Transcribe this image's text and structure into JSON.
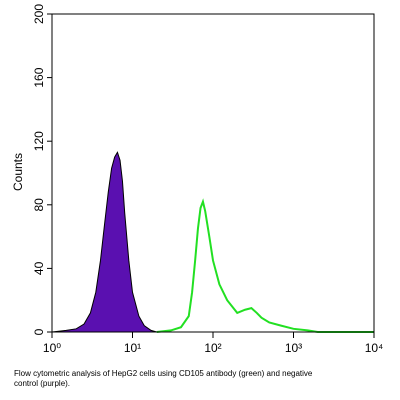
{
  "chart_data": {
    "type": "histogram-overlay",
    "ylabel": "Counts",
    "caption": "Flow cytometric analysis of HepG2 cells using CD105 antibody (green) and negative control (purple).",
    "xscale": "log",
    "xlim": [
      1,
      10000
    ],
    "xticks": [
      {
        "value": 1,
        "label": "10⁰"
      },
      {
        "value": 10,
        "label": "10¹"
      },
      {
        "value": 100,
        "label": "10²"
      },
      {
        "value": 1000,
        "label": "10³"
      },
      {
        "value": 10000,
        "label": "10⁴"
      }
    ],
    "ylim": [
      0,
      200
    ],
    "yticks": [
      0,
      40,
      80,
      120,
      160,
      200
    ],
    "series": [
      {
        "color": "#5a10b0",
        "fill": true,
        "x": [
          1,
          1.5,
          2,
          2.5,
          3,
          3.5,
          4,
          4.5,
          5,
          5.5,
          6,
          6.5,
          7,
          7.5,
          8,
          9,
          10,
          12,
          14,
          17,
          20,
          25
        ],
        "values": [
          0,
          1,
          2,
          5,
          12,
          25,
          45,
          68,
          88,
          103,
          110,
          113,
          108,
          95,
          75,
          45,
          25,
          10,
          4,
          1,
          0,
          0
        ]
      },
      {
        "color": "#22e022",
        "fill": false,
        "x": [
          20,
          30,
          40,
          50,
          55,
          60,
          65,
          70,
          75,
          80,
          90,
          100,
          120,
          150,
          200,
          250,
          300,
          350,
          400,
          500,
          700,
          1000,
          1500,
          2000,
          3000,
          5000,
          10000
        ],
        "values": [
          0,
          1,
          3,
          10,
          25,
          45,
          65,
          78,
          82,
          76,
          60,
          45,
          30,
          20,
          12,
          14,
          15,
          12,
          9,
          6,
          4,
          2,
          1,
          0,
          0,
          0,
          0
        ]
      }
    ]
  }
}
